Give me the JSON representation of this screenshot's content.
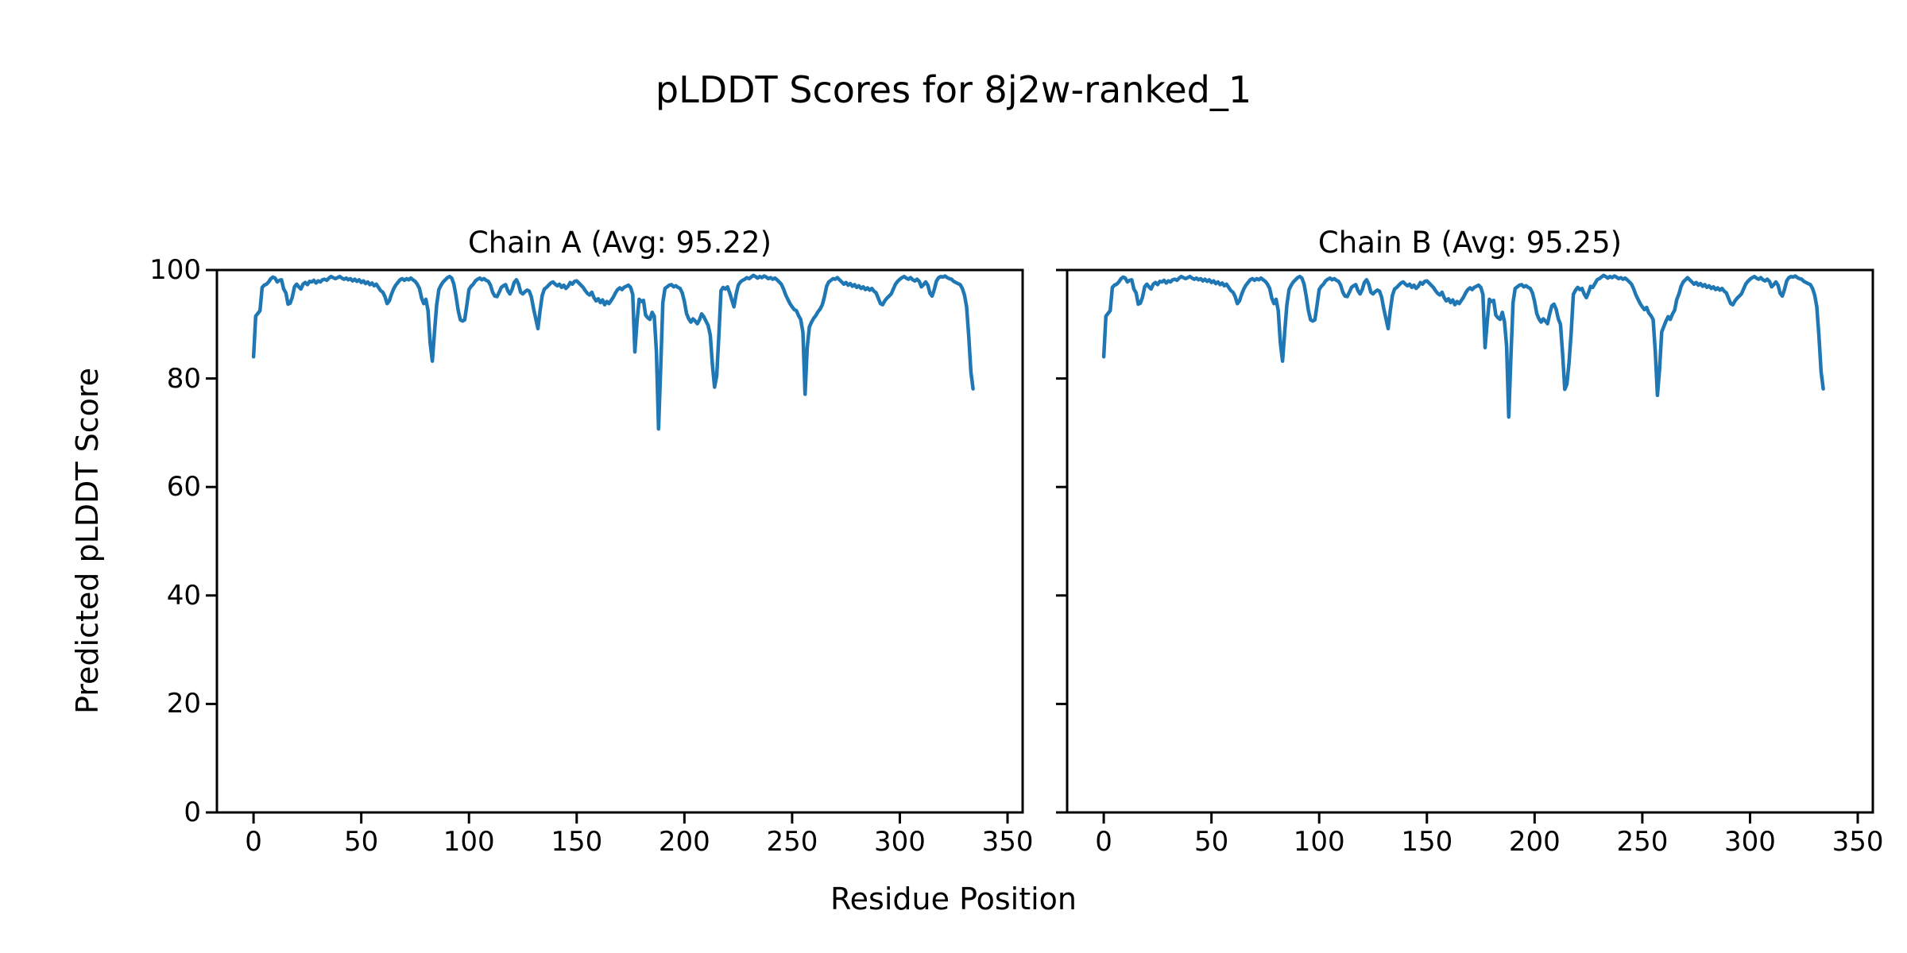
{
  "figure": {
    "title": "pLDDT Scores for 8j2w-ranked_1",
    "background_color": "#ffffff",
    "text_color": "#000000",
    "line_color": "#1f77b4"
  },
  "axis": {
    "xlabel": "Residue Position",
    "ylabel": "Predicted pLDDT Score"
  },
  "chart_data": [
    {
      "type": "line",
      "title": "Chain A (Avg: 95.22)",
      "chain": "A",
      "average_plddt": 95.22,
      "xlabel": "Residue Position",
      "ylabel": "Predicted pLDDT Score",
      "xlim": [
        -17,
        357
      ],
      "ylim": [
        0,
        100
      ],
      "xticks": [
        0,
        50,
        100,
        150,
        200,
        250,
        300,
        350
      ],
      "yticks": [
        0,
        20,
        40,
        60,
        80,
        100
      ],
      "show_ytick_labels": true,
      "grid": false,
      "legend": "none",
      "series": [
        {
          "name": "pLDDT",
          "color": "#1f77b4",
          "x0": 0,
          "dx": 1,
          "values": [
            84.0,
            91.5,
            92.0,
            92.5,
            96.8,
            97.2,
            97.4,
            97.8,
            98.4,
            98.7,
            98.5,
            97.8,
            98.1,
            98.2,
            96.5,
            95.8,
            93.7,
            93.9,
            95.0,
            96.9,
            97.4,
            96.9,
            96.5,
            97.4,
            97.7,
            97.3,
            97.9,
            97.8,
            98.1,
            97.6,
            98.0,
            97.8,
            98.2,
            98.3,
            98.1,
            98.5,
            98.8,
            98.6,
            98.4,
            98.6,
            98.8,
            98.5,
            98.3,
            98.5,
            98.2,
            98.4,
            98.0,
            98.3,
            97.9,
            98.2,
            97.7,
            98.0,
            97.5,
            97.8,
            97.3,
            97.6,
            97.1,
            97.4,
            96.8,
            96.2,
            95.9,
            95.1,
            93.8,
            94.3,
            95.5,
            96.5,
            97.2,
            97.7,
            98.2,
            98.4,
            98.1,
            98.4,
            98.2,
            98.5,
            98.2,
            97.9,
            97.4,
            96.6,
            94.8,
            93.8,
            94.6,
            92.5,
            86.5,
            83.2,
            88.5,
            93.5,
            96.4,
            97.2,
            97.8,
            98.2,
            98.6,
            98.8,
            98.5,
            97.4,
            95.2,
            92.5,
            90.8,
            90.6,
            90.8,
            93.5,
            96.4,
            97.0,
            97.4,
            98.0,
            98.3,
            98.5,
            98.2,
            98.4,
            98.1,
            97.9,
            97.2,
            95.9,
            95.2,
            95.1,
            95.9,
            96.8,
            97.1,
            97.3,
            96.2,
            95.6,
            96.4,
            97.7,
            98.2,
            97.4,
            95.9,
            95.6,
            96.0,
            96.3,
            96.1,
            95.0,
            92.8,
            91.0,
            89.2,
            92.5,
            95.3,
            96.5,
            96.8,
            97.2,
            97.6,
            97.8,
            97.4,
            97.1,
            97.4,
            96.8,
            97.2,
            96.6,
            97.0,
            97.7,
            97.4,
            97.9,
            98.0,
            97.6,
            97.2,
            96.8,
            96.2,
            95.7,
            95.4,
            95.9,
            94.9,
            94.3,
            94.7,
            94.0,
            94.5,
            93.6,
            94.2,
            93.8,
            94.4,
            95.0,
            95.8,
            96.4,
            96.7,
            96.4,
            96.8,
            97.0,
            97.2,
            96.8,
            95.5,
            84.9,
            90.5,
            94.6,
            94.2,
            94.4,
            91.7,
            91.2,
            90.9,
            92.2,
            91.5,
            85.0,
            70.7,
            82.0,
            94.0,
            96.6,
            96.9,
            97.2,
            97.3,
            96.9,
            97.1,
            96.8,
            96.6,
            95.8,
            94.2,
            92.0,
            91.0,
            90.4,
            91.0,
            90.6,
            90.1,
            90.8,
            91.9,
            91.4,
            90.6,
            89.8,
            88.0,
            82.5,
            78.4,
            80.5,
            88.0,
            96.2,
            96.8,
            96.5,
            96.9,
            95.8,
            94.5,
            93.2,
            95.5,
            97.2,
            97.8,
            98.1,
            98.3,
            98.6,
            98.4,
            98.7,
            99.0,
            98.8,
            98.5,
            98.8,
            98.6,
            98.9,
            98.7,
            98.4,
            98.6,
            98.3,
            98.5,
            98.2,
            97.8,
            97.4,
            96.5,
            95.4,
            94.6,
            93.8,
            93.2,
            92.7,
            92.5,
            91.6,
            90.9,
            88.5,
            77.1,
            85.7,
            89.5,
            90.4,
            91.1,
            91.6,
            92.3,
            92.8,
            93.6,
            95.1,
            97.0,
            97.8,
            98.1,
            98.4,
            98.3,
            98.6,
            98.2,
            97.8,
            97.4,
            97.7,
            97.2,
            97.5,
            97.0,
            97.3,
            96.8,
            97.1,
            96.6,
            96.9,
            96.4,
            96.7,
            96.3,
            96.6,
            96.1,
            95.8,
            94.8,
            93.8,
            93.6,
            94.3,
            94.8,
            95.2,
            95.6,
            96.5,
            97.4,
            97.9,
            98.3,
            98.6,
            98.8,
            98.5,
            98.3,
            98.6,
            98.2,
            98.0,
            98.3,
            97.9,
            96.9,
            97.3,
            97.8,
            97.2,
            95.7,
            95.2,
            96.4,
            98.0,
            98.6,
            98.8,
            98.7,
            98.9,
            98.6,
            98.4,
            98.3,
            97.9,
            97.7,
            97.5,
            97.3,
            96.6,
            95.4,
            93.2,
            87.8,
            81.2,
            78.1
          ]
        }
      ]
    },
    {
      "type": "line",
      "title": "Chain B (Avg: 95.25)",
      "chain": "B",
      "average_plddt": 95.25,
      "xlabel": "Residue Position",
      "ylabel": "Predicted pLDDT Score",
      "xlim": [
        -17,
        357
      ],
      "ylim": [
        0,
        100
      ],
      "xticks": [
        0,
        50,
        100,
        150,
        200,
        250,
        300,
        350
      ],
      "yticks": [
        0,
        20,
        40,
        60,
        80,
        100
      ],
      "show_ytick_labels": false,
      "grid": false,
      "legend": "none",
      "series": [
        {
          "name": "pLDDT",
          "color": "#1f77b4",
          "x0": 0,
          "dx": 1,
          "values": [
            84.0,
            91.5,
            92.0,
            92.5,
            96.8,
            97.2,
            97.4,
            97.8,
            98.4,
            98.7,
            98.5,
            97.8,
            98.1,
            98.2,
            96.5,
            95.8,
            93.7,
            93.9,
            95.0,
            96.9,
            97.4,
            96.9,
            96.5,
            97.4,
            97.7,
            97.3,
            97.9,
            97.8,
            98.1,
            97.6,
            98.0,
            97.8,
            98.2,
            98.3,
            98.1,
            98.5,
            98.8,
            98.6,
            98.4,
            98.6,
            98.8,
            98.5,
            98.3,
            98.5,
            98.2,
            98.4,
            98.0,
            98.3,
            97.9,
            98.2,
            97.7,
            98.0,
            97.5,
            97.8,
            97.3,
            97.6,
            97.1,
            97.4,
            96.8,
            96.2,
            95.9,
            95.1,
            93.8,
            94.3,
            95.5,
            96.5,
            97.2,
            97.7,
            98.2,
            98.4,
            98.1,
            98.4,
            98.2,
            98.5,
            98.2,
            97.9,
            97.4,
            96.6,
            94.8,
            93.8,
            94.6,
            92.5,
            86.5,
            83.2,
            88.5,
            93.5,
            96.4,
            97.2,
            97.8,
            98.2,
            98.6,
            98.8,
            98.5,
            97.4,
            95.2,
            92.5,
            90.8,
            90.6,
            90.8,
            93.5,
            96.4,
            97.0,
            97.4,
            98.0,
            98.3,
            98.5,
            98.2,
            98.4,
            98.1,
            97.9,
            97.2,
            95.9,
            95.2,
            95.1,
            95.9,
            96.8,
            97.1,
            97.3,
            96.2,
            95.6,
            96.4,
            97.7,
            98.2,
            97.4,
            95.9,
            95.6,
            96.0,
            96.3,
            96.1,
            95.0,
            92.8,
            91.0,
            89.2,
            92.5,
            95.3,
            96.5,
            96.8,
            97.2,
            97.6,
            97.8,
            97.4,
            97.1,
            97.4,
            96.8,
            97.2,
            96.6,
            97.0,
            97.7,
            97.4,
            97.9,
            98.0,
            97.6,
            97.2,
            96.8,
            96.2,
            95.7,
            95.4,
            95.9,
            94.9,
            94.3,
            94.7,
            94.0,
            94.5,
            93.6,
            94.2,
            93.8,
            94.4,
            95.0,
            95.8,
            96.4,
            96.7,
            96.4,
            96.8,
            97.0,
            97.2,
            96.8,
            95.5,
            85.7,
            90.5,
            94.6,
            94.2,
            94.4,
            91.7,
            91.2,
            90.9,
            92.2,
            90.5,
            86.0,
            72.9,
            84.0,
            94.0,
            96.6,
            96.9,
            97.2,
            97.3,
            96.9,
            97.1,
            96.8,
            96.6,
            95.8,
            94.2,
            92.0,
            91.0,
            90.4,
            91.0,
            90.6,
            90.1,
            91.9,
            93.4,
            93.7,
            92.8,
            91.0,
            90.0,
            84.5,
            78.0,
            79.0,
            83.0,
            88.5,
            95.5,
            96.3,
            96.8,
            96.4,
            96.6,
            95.6,
            94.9,
            95.8,
            97.0,
            96.8,
            97.5,
            98.2,
            98.4,
            98.7,
            99.0,
            98.8,
            98.5,
            98.8,
            98.6,
            98.9,
            98.7,
            98.4,
            98.6,
            98.3,
            98.5,
            98.2,
            97.8,
            97.4,
            96.5,
            95.4,
            94.6,
            93.8,
            93.2,
            92.7,
            93.1,
            92.1,
            91.6,
            90.9,
            85.0,
            76.9,
            81.7,
            88.6,
            89.6,
            90.6,
            91.4,
            90.9,
            91.9,
            92.6,
            94.6,
            95.6,
            97.0,
            97.8,
            98.2,
            98.6,
            98.2,
            97.8,
            97.4,
            97.7,
            97.2,
            97.5,
            97.0,
            97.3,
            96.8,
            97.1,
            96.6,
            96.9,
            96.4,
            96.7,
            96.3,
            96.6,
            96.1,
            95.8,
            94.8,
            93.8,
            93.6,
            94.3,
            94.8,
            95.2,
            95.6,
            96.5,
            97.4,
            97.9,
            98.3,
            98.6,
            98.8,
            98.5,
            98.3,
            98.6,
            98.2,
            98.0,
            98.3,
            97.9,
            96.9,
            97.3,
            97.8,
            97.2,
            95.7,
            95.2,
            96.4,
            98.0,
            98.6,
            98.8,
            98.7,
            98.9,
            98.6,
            98.4,
            98.3,
            97.9,
            97.7,
            97.5,
            97.3,
            96.6,
            95.4,
            93.2,
            87.8,
            81.2,
            78.1
          ]
        }
      ]
    }
  ]
}
